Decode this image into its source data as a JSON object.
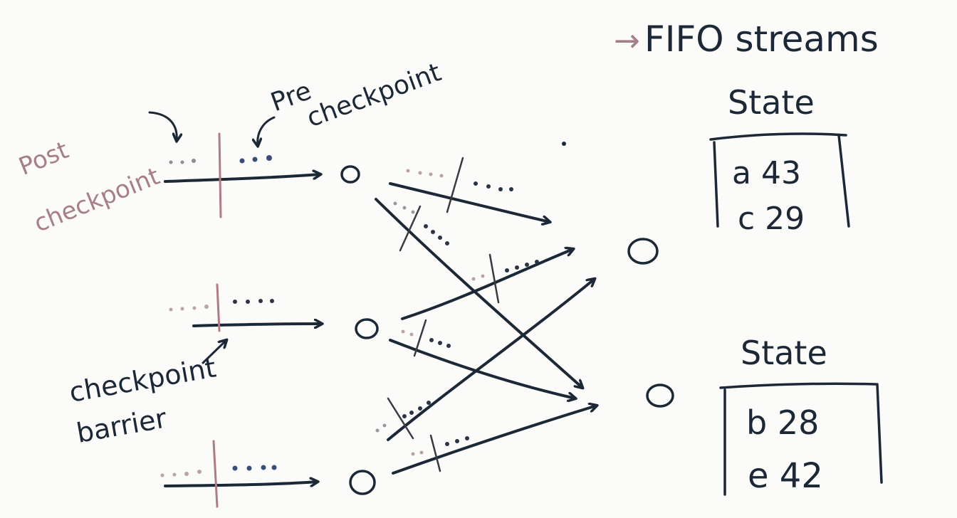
{
  "labels": {
    "fifo": "FIFO streams",
    "fifo_arrow": "→",
    "post_line1": "Post",
    "post_line2": "checkpoint",
    "pre_line1": "Pre",
    "pre_line2": "checkpoint",
    "barrier_line1": "checkpoint",
    "barrier_line2": "barrier"
  },
  "states": [
    {
      "title": "State",
      "rows": [
        "a 43",
        "c 29"
      ]
    },
    {
      "title": "State",
      "rows": [
        "b 28",
        "e 42"
      ]
    }
  ],
  "colors": {
    "ink": "#1d2836",
    "pink_ink": "#a77f86",
    "background": "#fbfbf9"
  }
}
